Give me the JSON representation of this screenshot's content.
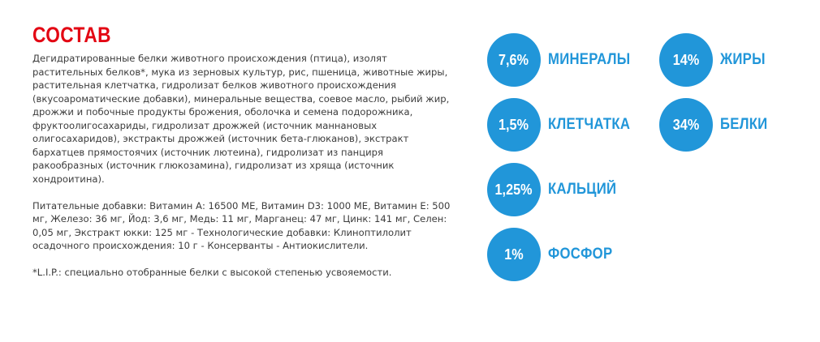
{
  "title": "СОСТАВ",
  "ingredients": "Дегидратированные белки животного происхождения (птица), изолят растительных белков*, мука из зерновых культур, рис, пшеница, животные жиры, растительная клетчатка, гидролизат белков животного происхождения (вкусоароматические добавки), минеральные вещества, соевое масло, рыбий жир, дрожжи и побочные продукты брожения, оболочка и семена подорожника, фруктоолигосахариды, гидролизат дрожжей (источник маннановых олигосахаридов), экстракты дрожжей (источник бета-глюканов), экстракт бархатцев прямостоячих (источник лютеина), гидролизат из панциря ракообразных (источник глюкозамина), гидролизат из хряща (источник хондроитина).",
  "additives": "Питательные добавки: Витамин А: 16500 МЕ, Витамин D3: 1000 МЕ, Витамин Е: 500 мг, Железо: 36 мг, Йод: 3,6 мг, Медь: 11 мг, Марганец: 47 мг, Цинк: 141 мг, Селен: 0,05 мг, Экстракт юкки: 125 мг - Технологические добавки: Клиноптилолит осадочного происхождения: 10 г - Консерванты - Антиокислители.",
  "footnote": "*L.I.P.: специально отобранные белки с высокой степенью усвояемости.",
  "nutrients": {
    "minerals": {
      "value": "7,6%",
      "label": "МИНЕРАЛЫ"
    },
    "fiber": {
      "value": "1,5%",
      "label": "КЛЕТЧАТКА"
    },
    "calcium": {
      "value": "1,25%",
      "label": "КАЛЬЦИЙ"
    },
    "phosphorus": {
      "value": "1%",
      "label": "ФОСФОР"
    },
    "fat": {
      "value": "14%",
      "label": "ЖИРЫ"
    },
    "protein": {
      "value": "34%",
      "label": "БЕЛКИ"
    }
  },
  "colors": {
    "title": "#e30613",
    "accent": "#2196d9",
    "text": "#3c3c3c"
  }
}
